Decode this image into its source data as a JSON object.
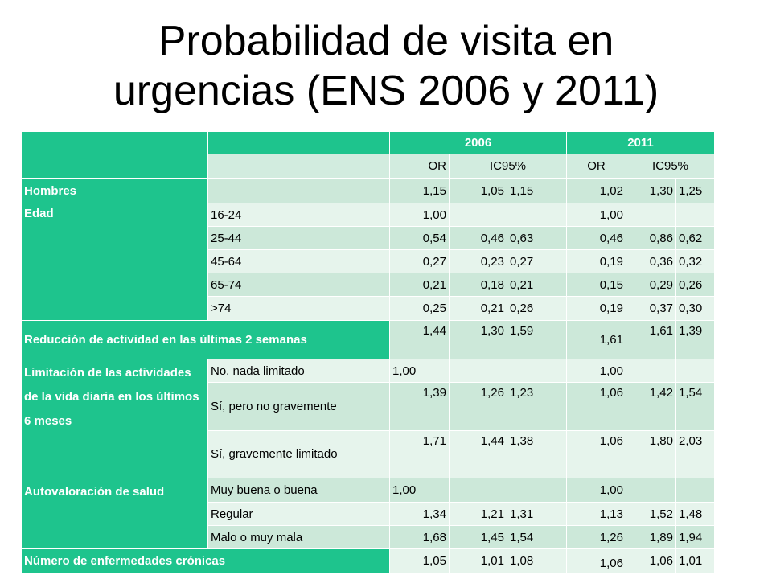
{
  "title": {
    "line1": "Probabilidad de visita en",
    "line2": "urgencias (ENS 2006 y 2011)"
  },
  "header": {
    "year1": "2006",
    "year2": "2011",
    "or": "OR",
    "ic": "IC95%"
  },
  "rows": {
    "hombres": {
      "label": "Hombres",
      "v": [
        "1,15",
        "1,05",
        "1,15",
        "1,02",
        "1,30",
        "1,25"
      ]
    },
    "edad": {
      "label": "Edad",
      "groups": [
        {
          "sub": "16-24",
          "v": [
            "1,00",
            "",
            "",
            "1,00",
            "",
            ""
          ]
        },
        {
          "sub": "25-44",
          "v": [
            "0,54",
            "0,46",
            "0,63",
            "0,46",
            "0,86",
            "0,62"
          ]
        },
        {
          "sub": "45-64",
          "v": [
            "0,27",
            "0,23",
            "0,27",
            "0,19",
            "0,36",
            "0,32"
          ]
        },
        {
          "sub": "65-74",
          "v": [
            "0,21",
            "0,18",
            "0,21",
            "0,15",
            "0,29",
            "0,26"
          ]
        },
        {
          "sub": ">74",
          "v": [
            "0,25",
            "0,21",
            "0,26",
            "0,19",
            "0,37",
            "0,30"
          ]
        }
      ]
    },
    "reduccion": {
      "label": "Reducción de actividad en las últimas 2 semanas",
      "v": [
        "1,44",
        "1,30",
        "1,59",
        "1,61",
        "1,61",
        "1,39"
      ]
    },
    "limitacion": {
      "label": "Limitación de las actividades de la vida diaria en los últimos 6 meses",
      "groups": [
        {
          "sub": "No, nada limitado",
          "v": [
            "1,00",
            "",
            "",
            "1,00",
            "",
            ""
          ]
        },
        {
          "sub": "Sí, pero no gravemente",
          "v": [
            "1,39",
            "1,26",
            "1,23",
            "1,06",
            "1,42",
            "1,54"
          ]
        },
        {
          "sub": "Sí, gravemente limitado",
          "v": [
            "1,71",
            "1,44",
            "1,38",
            "1,06",
            "1,80",
            "2,03"
          ]
        }
      ]
    },
    "autovaloracion": {
      "label": "Autovaloración de salud",
      "groups": [
        {
          "sub": "Muy buena o buena",
          "v": [
            "1,00",
            "",
            "",
            "1,00",
            "",
            ""
          ]
        },
        {
          "sub": "Regular",
          "v": [
            "1,34",
            "1,21",
            "1,31",
            "1,13",
            "1,52",
            "1,48"
          ]
        },
        {
          "sub": "Malo o muy mala",
          "v": [
            "1,68",
            "1,45",
            "1,54",
            "1,26",
            "1,89",
            "1,94"
          ]
        }
      ]
    },
    "cronicas": {
      "label": "Número de enfermedades crónicas",
      "v": [
        "1,05",
        "1,01",
        "1,08",
        "1,06",
        "1,06",
        "1,01"
      ]
    }
  }
}
